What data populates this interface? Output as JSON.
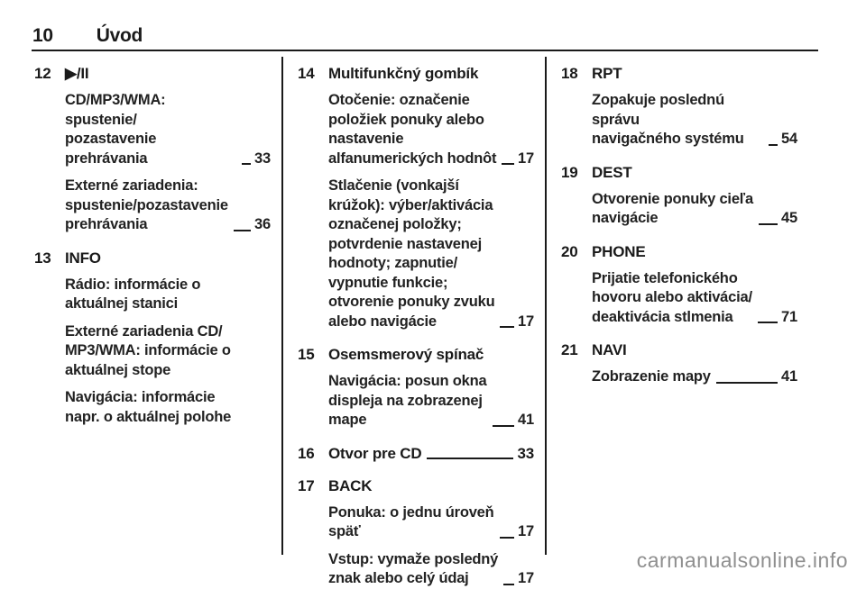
{
  "header": {
    "page_number": "10",
    "title": "Úvod"
  },
  "watermark": "carmanualsonline.info",
  "colors": {
    "text": "#1a1a1a",
    "leader": "#1a1a1a",
    "watermark": "#8f8f8f"
  },
  "columns": [
    {
      "items": [
        {
          "num": "12",
          "title": "▶/II",
          "icon": "play-pause-icon",
          "page": "",
          "paragraphs": [
            {
              "text": "CD/MP3/WMA: spustenie/\npozastavenie prehrávania",
              "page": "33"
            },
            {
              "text": "Externé zariadenia:\nspustenie/pozastavenie\nprehrávania",
              "page": "36"
            }
          ]
        },
        {
          "num": "13",
          "title": "INFO",
          "page": "",
          "paragraphs": [
            {
              "text": "Rádio: informácie o\naktuálnej stanici",
              "page": ""
            },
            {
              "text": "Externé zariadenia CD/\nMP3/WMA: informácie o\naktuálnej stope",
              "page": ""
            },
            {
              "text": "Navigácia: informácie\nnapr. o aktuálnej polohe",
              "page": ""
            }
          ]
        }
      ]
    },
    {
      "items": [
        {
          "num": "14",
          "title": "Multifunkčný gombík",
          "page": "",
          "paragraphs": [
            {
              "text": "Otočenie: označenie\npoložiek ponuky alebo\nnastavenie\nalfanumerických hodnôt",
              "page": "17"
            },
            {
              "text": "Stlačenie (vonkajší\nkrúžok): výber/aktivácia\noznačenej položky;\npotvrdenie nastavenej\nhodnoty; zapnutie/\nvypnutie funkcie;\notvorenie ponuky zvuku\nalebo navigácie",
              "page": "17"
            }
          ]
        },
        {
          "num": "15",
          "title": "Osemsmerový spínač",
          "page": "",
          "paragraphs": [
            {
              "text": "Navigácia: posun okna\ndispleja na zobrazenej\nmape",
              "page": "41"
            }
          ]
        },
        {
          "num": "16",
          "title": "Otvor pre CD",
          "page": "33",
          "paragraphs": []
        },
        {
          "num": "17",
          "title": "BACK",
          "page": "",
          "paragraphs": [
            {
              "text": "Ponuka: o jednu úroveň\nspäť",
              "page": "17"
            },
            {
              "text": "Vstup: vymaže posledný\nznak alebo celý údaj",
              "page": "17"
            }
          ]
        }
      ]
    },
    {
      "items": [
        {
          "num": "18",
          "title": "RPT",
          "page": "",
          "paragraphs": [
            {
              "text": "Zopakuje poslednú správu\nnavigačného systému",
              "page": "54"
            }
          ]
        },
        {
          "num": "19",
          "title": "DEST",
          "page": "",
          "paragraphs": [
            {
              "text": "Otvorenie ponuky cieľa\nnavigácie",
              "page": "45"
            }
          ]
        },
        {
          "num": "20",
          "title": "PHONE",
          "page": "",
          "paragraphs": [
            {
              "text": "Prijatie telefonického\nhovoru alebo aktivácia/\ndeaktivácia stlmenia",
              "page": "71"
            }
          ]
        },
        {
          "num": "21",
          "title": "NAVI",
          "page": "",
          "paragraphs": [
            {
              "text": "Zobrazenie mapy",
              "page": "41"
            }
          ]
        }
      ]
    }
  ]
}
